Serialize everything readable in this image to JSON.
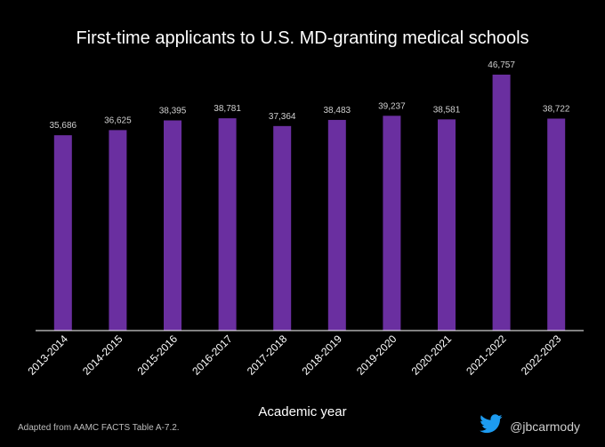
{
  "chart_data": {
    "type": "bar",
    "title": "First-time applicants to U.S. MD-granting medical schools",
    "xlabel": "Academic year",
    "ylabel": "",
    "categories": [
      "2013-2014",
      "2014-2015",
      "2015-2016",
      "2016-2017",
      "2017-2018",
      "2018-2019",
      "2019-2020",
      "2020-2021",
      "2021-2022",
      "2022-2023"
    ],
    "values": [
      35686,
      36625,
      38395,
      38781,
      37364,
      38483,
      39237,
      38581,
      46757,
      38722
    ],
    "data_labels": [
      "35,686",
      "36,625",
      "38,395",
      "38,781",
      "37,364",
      "38,483",
      "39,237",
      "38,581",
      "46,757",
      "38,722"
    ],
    "ylim": [
      0,
      50000
    ],
    "grid": false,
    "bar_color": "#6a2fa0"
  },
  "footer": {
    "source": "Adapted from AAMC FACTS Table A-7.2.",
    "handle": "@jbcarmody",
    "icon": "twitter-bird-icon",
    "icon_color": "#1d9bf0"
  }
}
